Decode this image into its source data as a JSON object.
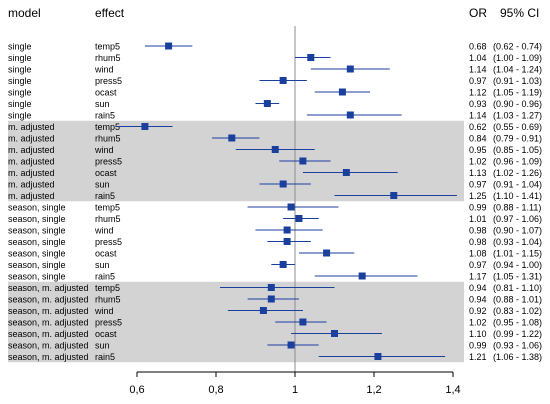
{
  "chart_data": {
    "type": "forest",
    "column_headers": {
      "model": "model",
      "effect": "effect",
      "or": "OR",
      "ci": "95% CI"
    },
    "x_ticks": [
      "0,6",
      "0,8",
      "1",
      "1,2",
      "1,4"
    ],
    "x_tick_values": [
      0.6,
      0.8,
      1.0,
      1.2,
      1.4
    ],
    "xlim": [
      0.6,
      1.4
    ],
    "reference_line": 1.0,
    "xlabel": "",
    "grid": false,
    "colors": {
      "marker": "#1a3f9c",
      "ci_line": "#1a3f9c",
      "shaded_band": "#d3d3d3",
      "reference_line": "#8c8c8c"
    },
    "groups": [
      {
        "name": "single",
        "shaded": false,
        "rows": [
          {
            "model": "single",
            "effect": "temp5",
            "or": 0.68,
            "lo": 0.62,
            "hi": 0.74,
            "or_text": "0.68",
            "ci_text": "(0.62 - 0.74)"
          },
          {
            "model": "single",
            "effect": "rhum5",
            "or": 1.04,
            "lo": 1.0,
            "hi": 1.09,
            "or_text": "1.04",
            "ci_text": "(1.00 - 1.09)"
          },
          {
            "model": "single",
            "effect": "wind",
            "or": 1.14,
            "lo": 1.04,
            "hi": 1.24,
            "or_text": "1.14",
            "ci_text": "(1.04 - 1.24)"
          },
          {
            "model": "single",
            "effect": "press5",
            "or": 0.97,
            "lo": 0.91,
            "hi": 1.03,
            "or_text": "0.97",
            "ci_text": "(0.91 - 1.03)"
          },
          {
            "model": "single",
            "effect": "ocast",
            "or": 1.12,
            "lo": 1.05,
            "hi": 1.19,
            "or_text": "1.12",
            "ci_text": "(1.05 - 1.19)"
          },
          {
            "model": "single",
            "effect": "sun",
            "or": 0.93,
            "lo": 0.9,
            "hi": 0.96,
            "or_text": "0.93",
            "ci_text": "(0.90 - 0.96)"
          },
          {
            "model": "single",
            "effect": "rain5",
            "or": 1.14,
            "lo": 1.03,
            "hi": 1.27,
            "or_text": "1.14",
            "ci_text": "(1.03 - 1.27)"
          }
        ]
      },
      {
        "name": "m. adjusted",
        "shaded": true,
        "rows": [
          {
            "model": "m. adjusted",
            "effect": "temp5",
            "or": 0.62,
            "lo": 0.55,
            "hi": 0.69,
            "or_text": "0.62",
            "ci_text": "(0.55 - 0.69)"
          },
          {
            "model": "m. adjusted",
            "effect": "rhum5",
            "or": 0.84,
            "lo": 0.79,
            "hi": 0.91,
            "or_text": "0.84",
            "ci_text": "(0.79 - 0.91)"
          },
          {
            "model": "m. adjusted",
            "effect": "wind",
            "or": 0.95,
            "lo": 0.85,
            "hi": 1.05,
            "or_text": "0.95",
            "ci_text": "(0.85 - 1.05)"
          },
          {
            "model": "m. adjusted",
            "effect": "press5",
            "or": 1.02,
            "lo": 0.96,
            "hi": 1.09,
            "or_text": "1.02",
            "ci_text": "(0.96 - 1.09)"
          },
          {
            "model": "m. adjusted",
            "effect": "ocast",
            "or": 1.13,
            "lo": 1.02,
            "hi": 1.26,
            "or_text": "1.13",
            "ci_text": "(1.02 - 1.26)"
          },
          {
            "model": "m. adjusted",
            "effect": "sun",
            "or": 0.97,
            "lo": 0.91,
            "hi": 1.04,
            "or_text": "0.97",
            "ci_text": "(0.91 - 1.04)"
          },
          {
            "model": "m. adjusted",
            "effect": "rain5",
            "or": 1.25,
            "lo": 1.1,
            "hi": 1.41,
            "or_text": "1.25",
            "ci_text": "(1.10 - 1.41)"
          }
        ]
      },
      {
        "name": "season, single",
        "shaded": false,
        "rows": [
          {
            "model": "season, single",
            "effect": "temp5",
            "or": 0.99,
            "lo": 0.88,
            "hi": 1.11,
            "or_text": "0.99",
            "ci_text": "(0.88 - 1.11)"
          },
          {
            "model": "season, single",
            "effect": "rhum5",
            "or": 1.01,
            "lo": 0.97,
            "hi": 1.06,
            "or_text": "1.01",
            "ci_text": "(0.97 - 1.06)"
          },
          {
            "model": "season, single",
            "effect": "wind",
            "or": 0.98,
            "lo": 0.9,
            "hi": 1.07,
            "or_text": "0.98",
            "ci_text": "(0.90 - 1.07)"
          },
          {
            "model": "season, single",
            "effect": "press5",
            "or": 0.98,
            "lo": 0.93,
            "hi": 1.04,
            "or_text": "0.98",
            "ci_text": "(0.93 - 1.04)"
          },
          {
            "model": "season, single",
            "effect": "ocast",
            "or": 1.08,
            "lo": 1.01,
            "hi": 1.15,
            "or_text": "1.08",
            "ci_text": "(1.01 - 1.15)"
          },
          {
            "model": "season, single",
            "effect": "sun",
            "or": 0.97,
            "lo": 0.94,
            "hi": 1.0,
            "or_text": "0.97",
            "ci_text": "(0.94 - 1.00)"
          },
          {
            "model": "season, single",
            "effect": "rain5",
            "or": 1.17,
            "lo": 1.05,
            "hi": 1.31,
            "or_text": "1.17",
            "ci_text": "(1.05 - 1.31)"
          }
        ]
      },
      {
        "name": "season, m. adjusted",
        "shaded": true,
        "rows": [
          {
            "model": "season, m. adjusted",
            "effect": "temp5",
            "or": 0.94,
            "lo": 0.81,
            "hi": 1.1,
            "or_text": "0.94",
            "ci_text": "(0.81 - 1.10)"
          },
          {
            "model": "season, m. adjusted",
            "effect": "rhum5",
            "or": 0.94,
            "lo": 0.88,
            "hi": 1.01,
            "or_text": "0.94",
            "ci_text": "(0.88 - 1.01)"
          },
          {
            "model": "season, m. adjusted",
            "effect": "wind",
            "or": 0.92,
            "lo": 0.83,
            "hi": 1.02,
            "or_text": "0.92",
            "ci_text": "(0.83 - 1.02)"
          },
          {
            "model": "season, m. adjusted",
            "effect": "press5",
            "or": 1.02,
            "lo": 0.95,
            "hi": 1.08,
            "or_text": "1.02",
            "ci_text": "(0.95 - 1.08)"
          },
          {
            "model": "season, m. adjusted",
            "effect": "ocast",
            "or": 1.1,
            "lo": 0.99,
            "hi": 1.22,
            "or_text": "1.10",
            "ci_text": "(0.99 - 1.22)"
          },
          {
            "model": "season, m. adjusted",
            "effect": "sun",
            "or": 0.99,
            "lo": 0.93,
            "hi": 1.06,
            "or_text": "0.99",
            "ci_text": "(0.93 - 1.06)"
          },
          {
            "model": "season, m. adjusted",
            "effect": "rain5",
            "or": 1.21,
            "lo": 1.06,
            "hi": 1.38,
            "or_text": "1.21",
            "ci_text": "(1.06 - 1.38)"
          }
        ]
      }
    ]
  }
}
